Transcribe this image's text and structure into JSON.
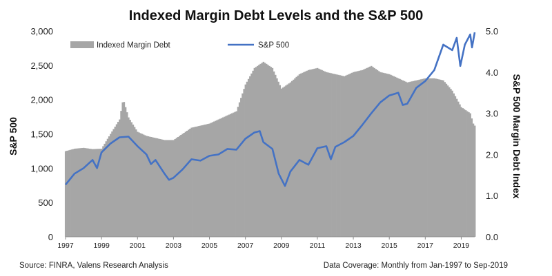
{
  "chart_data": {
    "type": "bar+line",
    "title": "Indexed Margin  Debt Levels and the S&P 500",
    "ylabel_left": "S&P 500",
    "ylabel_right": "S&P 500 Margin Debt Index",
    "ylim_left": [
      0,
      3000
    ],
    "ylim_right": [
      0.0,
      5.0
    ],
    "yticks_left": [
      "0",
      "500",
      "1,000",
      "1,500",
      "2,000",
      "2,500",
      "3,000"
    ],
    "yticks_right": [
      "0.0",
      "1.0",
      "2.0",
      "3.0",
      "4.0",
      "5.0"
    ],
    "xticks": [
      "1997",
      "1999",
      "2001",
      "2003",
      "2005",
      "2007",
      "2009",
      "2011",
      "2013",
      "2015",
      "2017",
      "2019"
    ],
    "legend": {
      "position": "top",
      "entries": [
        "Indexed Margin Debt",
        "S&P 500"
      ]
    },
    "colors": {
      "margin_debt": "#a6a6a6",
      "sp500": "#4472c4"
    },
    "series": [
      {
        "name": "Indexed Margin Debt",
        "kind": "bar",
        "axis": "right",
        "points": [
          [
            1997.0,
            2.08
          ],
          [
            1997.5,
            2.14
          ],
          [
            1998.0,
            2.16
          ],
          [
            1998.5,
            2.13
          ],
          [
            1999.0,
            2.14
          ],
          [
            1999.5,
            2.5
          ],
          [
            2000.0,
            2.85
          ],
          [
            2000.2,
            3.35
          ],
          [
            2000.5,
            2.9
          ],
          [
            2001.0,
            2.55
          ],
          [
            2001.5,
            2.45
          ],
          [
            2002.0,
            2.4
          ],
          [
            2002.5,
            2.35
          ],
          [
            2003.0,
            2.35
          ],
          [
            2003.5,
            2.5
          ],
          [
            2004.0,
            2.65
          ],
          [
            2004.5,
            2.7
          ],
          [
            2005.0,
            2.75
          ],
          [
            2005.5,
            2.85
          ],
          [
            2006.0,
            2.95
          ],
          [
            2006.5,
            3.05
          ],
          [
            2007.0,
            3.7
          ],
          [
            2007.5,
            4.1
          ],
          [
            2008.0,
            4.25
          ],
          [
            2008.5,
            4.1
          ],
          [
            2009.0,
            3.6
          ],
          [
            2009.5,
            3.75
          ],
          [
            2010.0,
            3.95
          ],
          [
            2010.5,
            4.05
          ],
          [
            2011.0,
            4.1
          ],
          [
            2011.5,
            4.0
          ],
          [
            2012.0,
            3.95
          ],
          [
            2012.5,
            3.9
          ],
          [
            2013.0,
            4.0
          ],
          [
            2013.5,
            4.05
          ],
          [
            2014.0,
            4.15
          ],
          [
            2014.5,
            4.0
          ],
          [
            2015.0,
            3.95
          ],
          [
            2015.5,
            3.85
          ],
          [
            2016.0,
            3.75
          ],
          [
            2016.5,
            3.8
          ],
          [
            2017.0,
            3.85
          ],
          [
            2017.5,
            3.85
          ],
          [
            2018.0,
            3.8
          ],
          [
            2018.5,
            3.55
          ],
          [
            2019.0,
            3.15
          ],
          [
            2019.5,
            3.0
          ],
          [
            2019.7,
            2.7
          ]
        ]
      },
      {
        "name": "S&P 500",
        "kind": "line",
        "axis": "left",
        "points": [
          [
            1997.0,
            760
          ],
          [
            1997.5,
            920
          ],
          [
            1998.0,
            1000
          ],
          [
            1998.5,
            1120
          ],
          [
            1998.75,
            1000
          ],
          [
            1999.0,
            1230
          ],
          [
            1999.5,
            1360
          ],
          [
            2000.0,
            1450
          ],
          [
            2000.5,
            1460
          ],
          [
            2001.0,
            1320
          ],
          [
            2001.5,
            1200
          ],
          [
            2001.75,
            1060
          ],
          [
            2002.0,
            1120
          ],
          [
            2002.5,
            920
          ],
          [
            2002.75,
            830
          ],
          [
            2003.0,
            860
          ],
          [
            2003.5,
            980
          ],
          [
            2004.0,
            1130
          ],
          [
            2004.5,
            1110
          ],
          [
            2005.0,
            1180
          ],
          [
            2005.5,
            1200
          ],
          [
            2006.0,
            1280
          ],
          [
            2006.5,
            1270
          ],
          [
            2007.0,
            1430
          ],
          [
            2007.5,
            1520
          ],
          [
            2007.8,
            1540
          ],
          [
            2008.0,
            1380
          ],
          [
            2008.5,
            1280
          ],
          [
            2008.85,
            920
          ],
          [
            2009.2,
            740
          ],
          [
            2009.5,
            950
          ],
          [
            2010.0,
            1120
          ],
          [
            2010.5,
            1050
          ],
          [
            2011.0,
            1290
          ],
          [
            2011.5,
            1320
          ],
          [
            2011.75,
            1130
          ],
          [
            2012.0,
            1310
          ],
          [
            2012.5,
            1380
          ],
          [
            2013.0,
            1470
          ],
          [
            2013.5,
            1630
          ],
          [
            2014.0,
            1800
          ],
          [
            2014.5,
            1960
          ],
          [
            2015.0,
            2060
          ],
          [
            2015.5,
            2100
          ],
          [
            2015.75,
            1920
          ],
          [
            2016.0,
            1940
          ],
          [
            2016.5,
            2170
          ],
          [
            2017.0,
            2270
          ],
          [
            2017.5,
            2430
          ],
          [
            2018.0,
            2800
          ],
          [
            2018.5,
            2720
          ],
          [
            2018.75,
            2900
          ],
          [
            2018.95,
            2490
          ],
          [
            2019.2,
            2800
          ],
          [
            2019.5,
            2950
          ],
          [
            2019.6,
            2760
          ],
          [
            2019.75,
            2980
          ]
        ]
      }
    ]
  },
  "footer": {
    "source": "Source: FINRA, Valens Research Analysis",
    "coverage": "Data Coverage: Monthly from Jan-1997 to Sep-2019"
  }
}
